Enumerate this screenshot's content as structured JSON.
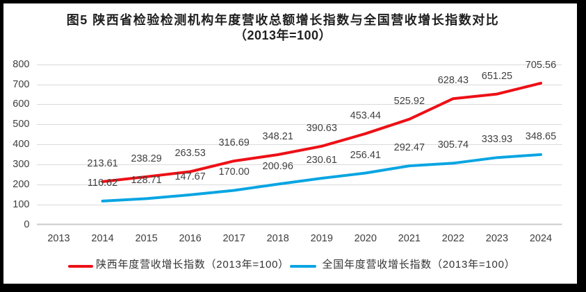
{
  "title": {
    "line1": "图5 陕西省检验检测机构年度营收总额增长指数与全国营收增长指数对比",
    "line2": "（2013年=100）"
  },
  "chart_data": {
    "type": "line",
    "title": "图5 陕西省检验检测机构年度营收总额增长指数与全国营收增长指数对比（2013年=100）",
    "xlabel": "",
    "ylabel": "",
    "categories": [
      "2013",
      "2014",
      "2015",
      "2016",
      "2017",
      "2018",
      "2019",
      "2020",
      "2021",
      "2022",
      "2023",
      "2024"
    ],
    "series": [
      {
        "name": "陕西年度营收增长指数（2013年=100）",
        "color": "#ed1016",
        "values": [
          null,
          213.61,
          238.29,
          263.53,
          316.69,
          348.21,
          390.63,
          453.44,
          525.92,
          628.43,
          651.25,
          705.56
        ]
      },
      {
        "name": "全国年度营收增长指数（2013年=100）",
        "color": "#09a5e2",
        "values": [
          null,
          116.62,
          128.71,
          147.67,
          170.0,
          200.96,
          230.61,
          256.41,
          292.47,
          305.74,
          333.93,
          348.65
        ]
      }
    ],
    "ylim": [
      0,
      800
    ],
    "ytick_step": 100,
    "yticks": [
      0,
      100,
      200,
      300,
      400,
      500,
      600,
      700,
      800
    ],
    "grid": true,
    "gridline_color": "#dadada",
    "axisline_color": "#c9c9c9",
    "data_label_decimals": 2,
    "legend_position": "bottom",
    "background": "#ffffff",
    "frame_color": "#000000"
  }
}
